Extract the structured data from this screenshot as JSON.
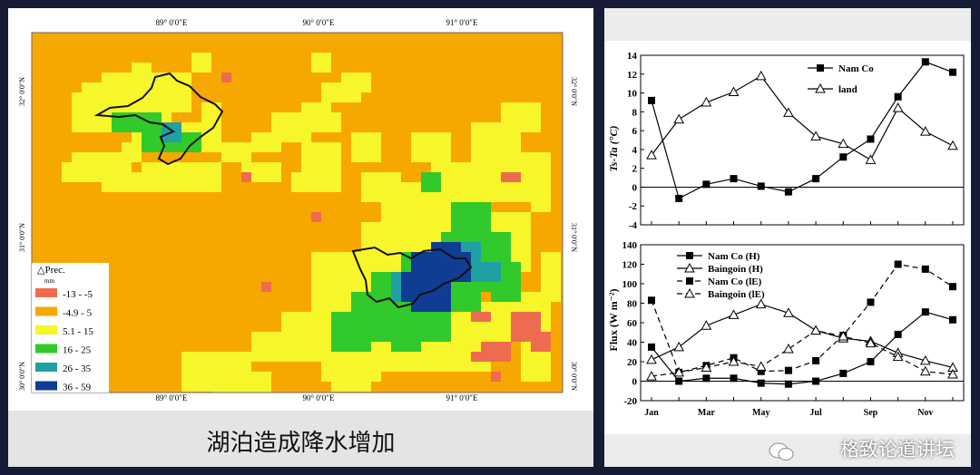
{
  "map": {
    "top_lon_labels": [
      "89° 0′0″E",
      "90° 0′0″E",
      "91° 0′0″E"
    ],
    "bottom_lon_labels": [
      "89° 0′0″E",
      "90° 0′0″E",
      "91° 0′0″E"
    ],
    "lat_labels": [
      "32° 0′0″N",
      "31° 0′0″N",
      "30° 0′0″N"
    ],
    "legend": {
      "title": "△Prec.",
      "unit": "mm",
      "items": [
        {
          "label": "-13 - -5",
          "color": "#ef6b4f"
        },
        {
          "label": "-4.9 - 5",
          "color": "#f7a800"
        },
        {
          "label": "5.1 - 15",
          "color": "#f6f62a"
        },
        {
          "label": "16 - 25",
          "color": "#31c92b"
        },
        {
          "label": "26 - 35",
          "color": "#1fa0a3"
        },
        {
          "label": "36 - 59",
          "color": "#103c93"
        }
      ]
    }
  },
  "caption": "湖泊造成降水增加",
  "watermark": "格致论道讲坛",
  "chart_data": [
    {
      "type": "line",
      "ylabel": "Ts-Ta (°C)",
      "ylim": [
        -4,
        14
      ],
      "yticks": [
        "-4",
        "-2",
        "0",
        "2",
        "4",
        "6",
        "8",
        "10",
        "12",
        "14"
      ],
      "x": [
        1,
        2,
        3,
        4,
        5,
        6,
        7,
        8,
        9,
        10,
        11,
        12
      ],
      "series": [
        {
          "name": "Nam Co",
          "marker": "square-filled",
          "values": [
            9.2,
            -1.2,
            0.3,
            0.9,
            0.1,
            -0.5,
            0.9,
            3.2,
            5.1,
            9.6,
            13.3,
            12.2
          ]
        },
        {
          "name": "land",
          "marker": "triangle-open",
          "values": [
            3.4,
            7.2,
            9.0,
            10.1,
            11.8,
            7.9,
            5.4,
            4.6,
            2.9,
            8.4,
            5.9,
            4.4
          ]
        }
      ]
    },
    {
      "type": "line",
      "ylabel": "Flux (W m⁻²)",
      "ylim": [
        -20,
        140
      ],
      "yticks": [
        "-20",
        "0",
        "20",
        "40",
        "60",
        "80",
        "100",
        "120",
        "140"
      ],
      "x_ticklabels": [
        "Jan",
        "Mar",
        "May",
        "Jul",
        "Sep",
        "Nov"
      ],
      "x": [
        1,
        2,
        3,
        4,
        5,
        6,
        7,
        8,
        9,
        10,
        11,
        12
      ],
      "series": [
        {
          "name": "Nam Co (H)",
          "marker": "square-filled",
          "dashed": false,
          "values": [
            35,
            0,
            3,
            3,
            -2,
            -3,
            0,
            8,
            20,
            48,
            71,
            63
          ]
        },
        {
          "name": "Baingoin (H)",
          "marker": "triangle-open",
          "dashed": false,
          "values": [
            22,
            35,
            57,
            68,
            79,
            70,
            52,
            44,
            41,
            29,
            21,
            14
          ]
        },
        {
          "name": "Nam Co (lE)",
          "marker": "square-filled",
          "dashed": true,
          "values": [
            83,
            9,
            16,
            24,
            10,
            11,
            21,
            47,
            81,
            120,
            115,
            97
          ]
        },
        {
          "name": "Baingoin (lE)",
          "marker": "triangle-open",
          "dashed": true,
          "values": [
            5,
            9,
            14,
            20,
            15,
            33,
            52,
            46,
            39,
            25,
            10,
            7
          ]
        }
      ]
    }
  ]
}
